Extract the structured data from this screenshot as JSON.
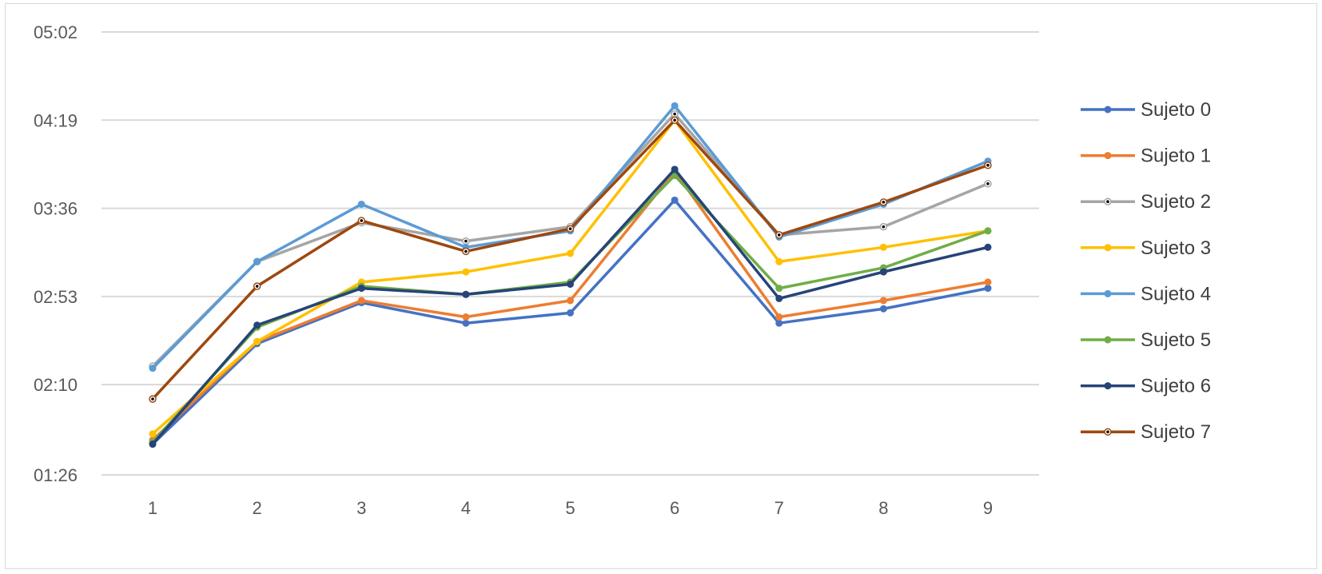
{
  "chart_data": {
    "type": "line",
    "title": "",
    "xlabel": "",
    "ylabel": "",
    "x": [
      1,
      2,
      3,
      4,
      5,
      6,
      7,
      8,
      9
    ],
    "y_ticks": [
      "01:26",
      "02:10",
      "02:53",
      "03:36",
      "04:19",
      "05:02"
    ],
    "ylim_seconds": [
      86,
      302
    ],
    "grid": true,
    "legend_position": "right",
    "series": [
      {
        "name": "Sujeto 0",
        "color": "#4472C4",
        "marker": "circle",
        "values": [
          "01:41",
          "02:30",
          "02:50",
          "02:40",
          "02:45",
          "03:40",
          "02:40",
          "02:47",
          "02:57"
        ]
      },
      {
        "name": "Sujeto 1",
        "color": "#ED7D31",
        "marker": "circle",
        "values": [
          "01:43",
          "02:31",
          "02:51",
          "02:43",
          "02:51",
          "03:54",
          "02:43",
          "02:51",
          "03:00"
        ]
      },
      {
        "name": "Sujeto 2",
        "color": "#A5A5A5",
        "marker": "dot",
        "values": [
          "02:19",
          "03:10",
          "03:29",
          "03:20",
          "03:27",
          "04:22",
          "03:23",
          "03:27",
          "03:48"
        ]
      },
      {
        "name": "Sujeto 3",
        "color": "#FFC000",
        "marker": "circle",
        "values": [
          "01:46",
          "02:31",
          "03:00",
          "03:05",
          "03:14",
          "04:19",
          "03:10",
          "03:17",
          "03:25"
        ]
      },
      {
        "name": "Sujeto 4",
        "color": "#5B9BD5",
        "marker": "circle",
        "values": [
          "02:18",
          "03:10",
          "03:38",
          "03:17",
          "03:25",
          "04:26",
          "03:22",
          "03:38",
          "03:59"
        ]
      },
      {
        "name": "Sujeto 5",
        "color": "#70AD47",
        "marker": "circle",
        "values": [
          "01:42",
          "02:38",
          "02:58",
          "02:54",
          "03:00",
          "03:52",
          "02:57",
          "03:07",
          "03:25"
        ]
      },
      {
        "name": "Sujeto 6",
        "color": "#264478",
        "marker": "circle",
        "values": [
          "01:41",
          "02:39",
          "02:57",
          "02:54",
          "02:59",
          "03:55",
          "02:52",
          "03:05",
          "03:17"
        ]
      },
      {
        "name": "Sujeto 7",
        "color": "#9E480E",
        "marker": "dot",
        "values": [
          "02:03",
          "02:58",
          "03:30",
          "03:15",
          "03:26",
          "04:19",
          "03:23",
          "03:39",
          "03:57"
        ]
      }
    ]
  }
}
